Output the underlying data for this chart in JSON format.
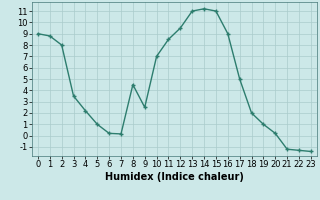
{
  "x": [
    0,
    1,
    2,
    3,
    4,
    5,
    6,
    7,
    8,
    9,
    10,
    11,
    12,
    13,
    14,
    15,
    16,
    17,
    18,
    19,
    20,
    21,
    22,
    23
  ],
  "y": [
    9,
    8.8,
    8,
    3.5,
    2.2,
    1,
    0.2,
    0.15,
    4.5,
    2.5,
    7,
    8.5,
    9.5,
    11,
    11.2,
    11,
    9,
    5,
    2,
    1,
    0.2,
    -1.2,
    -1.3,
    -1.4
  ],
  "xlabel": "Humidex (Indice chaleur)",
  "xlim": [
    -0.5,
    23.5
  ],
  "ylim": [
    -1.8,
    11.8
  ],
  "yticks": [
    -1,
    0,
    1,
    2,
    3,
    4,
    5,
    6,
    7,
    8,
    9,
    10,
    11
  ],
  "xticks": [
    0,
    1,
    2,
    3,
    4,
    5,
    6,
    7,
    8,
    9,
    10,
    11,
    12,
    13,
    14,
    15,
    16,
    17,
    18,
    19,
    20,
    21,
    22,
    23
  ],
  "line_color": "#2d7d6e",
  "marker": "+",
  "marker_size": 3.5,
  "bg_color": "#cce8e8",
  "grid_color": "#aacccc",
  "fig_bg": "#cce8e8",
  "xlabel_fontsize": 7,
  "tick_fontsize": 6,
  "line_width": 1.0,
  "marker_edge_width": 1.0
}
